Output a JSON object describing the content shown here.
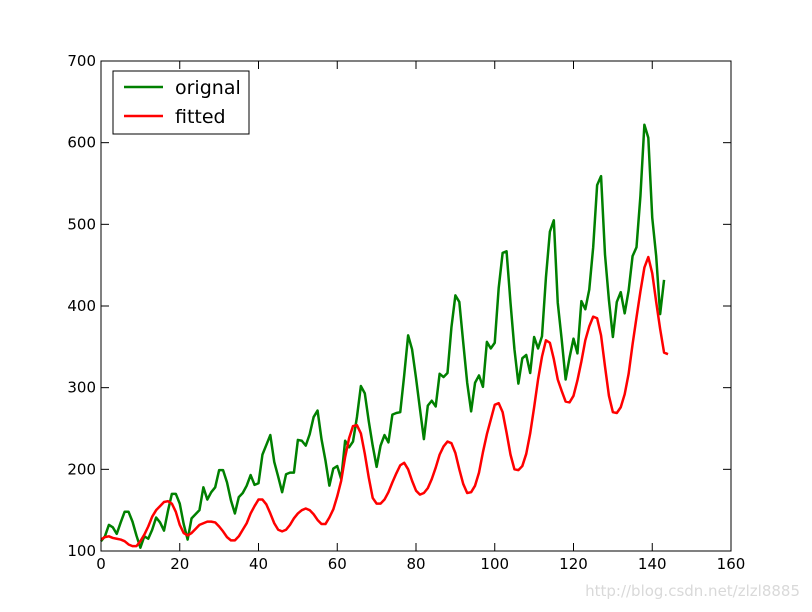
{
  "chart_data": {
    "type": "line",
    "title": "",
    "xlabel": "",
    "ylabel": "",
    "xlim": [
      0,
      160
    ],
    "ylim": [
      100,
      700
    ],
    "xticks": [
      "0",
      "20",
      "40",
      "60",
      "80",
      "100",
      "120",
      "140",
      "160"
    ],
    "yticks": [
      "100",
      "200",
      "300",
      "400",
      "500",
      "600",
      "700"
    ],
    "legend_position": "top-left",
    "grid": false,
    "series": [
      {
        "name": "orignal",
        "color": "#008000",
        "y": [
          112,
          118,
          132,
          129,
          121,
          135,
          148,
          148,
          136,
          119,
          104,
          118,
          115,
          126,
          141,
          135,
          125,
          149,
          170,
          170,
          158,
          133,
          114,
          140,
          145,
          150,
          178,
          163,
          172,
          178,
          199,
          199,
          184,
          162,
          146,
          166,
          171,
          180,
          193,
          181,
          183,
          218,
          230,
          242,
          209,
          191,
          172,
          194,
          196,
          196,
          236,
          235,
          229,
          243,
          264,
          272,
          237,
          211,
          180,
          201,
          204,
          188,
          235,
          227,
          234,
          264,
          302,
          293,
          259,
          229,
          203,
          229,
          242,
          233,
          267,
          269,
          270,
          315,
          364,
          347,
          312,
          274,
          237,
          278,
          284,
          277,
          317,
          313,
          318,
          374,
          413,
          405,
          355,
          306,
          271,
          306,
          315,
          301,
          356,
          348,
          355,
          422,
          465,
          467,
          404,
          347,
          305,
          336,
          340,
          318,
          362,
          348,
          363,
          435,
          491,
          505,
          404,
          359,
          310,
          337,
          360,
          342,
          406,
          396,
          420,
          472,
          548,
          559,
          463,
          407,
          362,
          405,
          417,
          391,
          419,
          461,
          472,
          535,
          622,
          606,
          508,
          461,
          390,
          432
        ]
      },
      {
        "name": "fitted",
        "color": "#ff0000",
        "y": [
          114,
          117,
          118,
          116,
          115,
          114,
          112,
          108,
          106,
          106,
          112,
          120,
          130,
          142,
          150,
          155,
          160,
          161,
          158,
          148,
          132,
          122,
          119,
          122,
          127,
          132,
          134,
          136,
          136,
          135,
          130,
          124,
          117,
          113,
          113,
          118,
          126,
          134,
          146,
          155,
          163,
          163,
          157,
          146,
          134,
          126,
          124,
          126,
          132,
          140,
          146,
          150,
          152,
          150,
          145,
          138,
          133,
          133,
          141,
          151,
          167,
          186,
          215,
          238,
          253,
          254,
          244,
          219,
          190,
          165,
          158,
          158,
          163,
          172,
          184,
          195,
          205,
          208,
          200,
          186,
          174,
          169,
          171,
          177,
          188,
          202,
          218,
          228,
          234,
          232,
          220,
          200,
          182,
          171,
          172,
          180,
          196,
          221,
          243,
          261,
          279,
          281,
          270,
          245,
          218,
          200,
          199,
          204,
          219,
          244,
          276,
          310,
          338,
          358,
          355,
          335,
          310,
          296,
          283,
          282,
          290,
          309,
          332,
          358,
          375,
          387,
          385,
          364,
          326,
          290,
          270,
          269,
          276,
          292,
          317,
          353,
          386,
          418,
          447,
          460,
          440,
          405,
          372,
          343,
          341
        ]
      }
    ]
  },
  "watermark": "http://blog.csdn.net/zlzl8885"
}
